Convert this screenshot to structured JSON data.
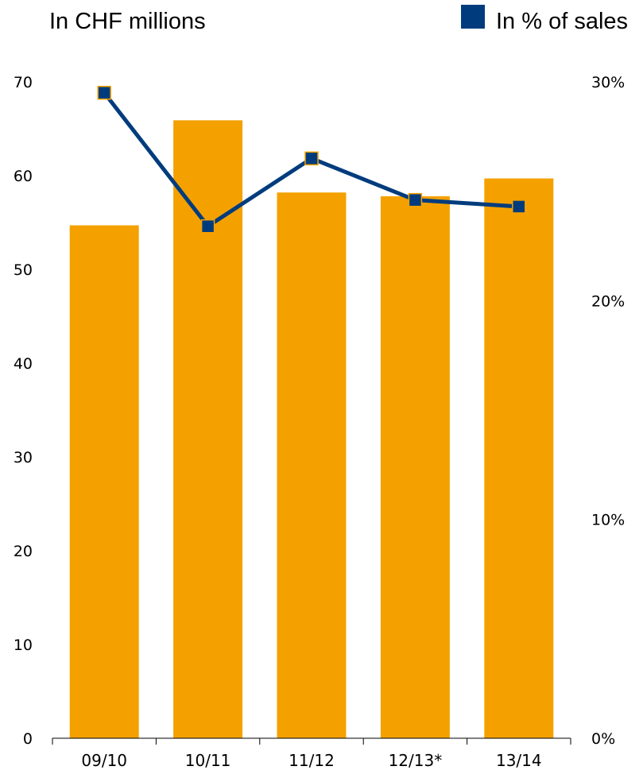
{
  "chart_data": {
    "type": "bar",
    "title": "In CHF millions",
    "categories": [
      "09/10",
      "10/11",
      "11/12",
      "12/13*",
      "13/14"
    ],
    "series": [
      {
        "type": "bar",
        "axis": "left",
        "values": [
          54.7,
          65.9,
          58.2,
          57.8,
          59.7
        ],
        "color": "#f4a100"
      },
      {
        "type": "line",
        "axis": "right",
        "name": "In % of sales",
        "values": [
          29.5,
          23.4,
          26.5,
          24.6,
          24.3
        ],
        "color": "#003c7d",
        "marker_edge_color": "#f4a100"
      }
    ],
    "y_left": {
      "min": 0,
      "max": 70,
      "ticks": [
        "0",
        "10",
        "20",
        "30",
        "40",
        "50",
        "60",
        "70"
      ]
    },
    "y_right": {
      "min": 0,
      "max": 30,
      "ticks": [
        "0%",
        "10%",
        "20%",
        "30%"
      ]
    },
    "legend_position": "top-right",
    "grid": false
  }
}
